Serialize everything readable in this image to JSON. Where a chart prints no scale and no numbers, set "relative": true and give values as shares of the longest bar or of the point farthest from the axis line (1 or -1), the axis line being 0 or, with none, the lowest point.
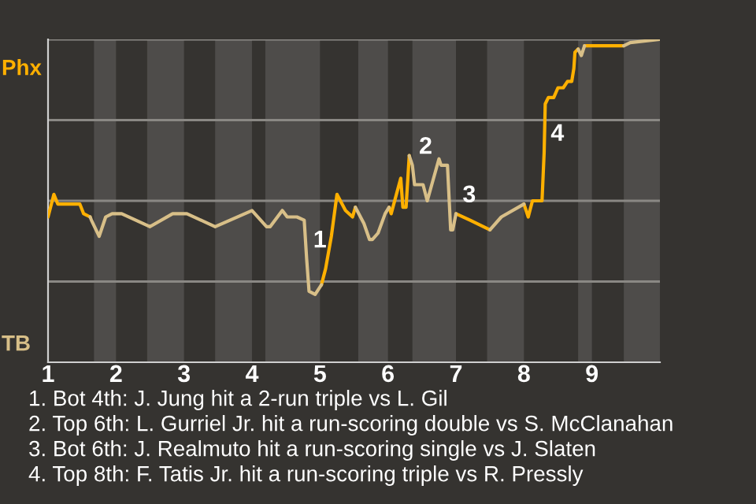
{
  "chart_data": {
    "type": "line",
    "relative": true,
    "grid": "y",
    "xlim": [
      1,
      10
    ],
    "xticks": [
      1,
      2,
      3,
      4,
      5,
      6,
      7,
      8,
      9
    ],
    "series": [
      {
        "name": "Phx",
        "color": "#ffb000",
        "x": [
          1.0,
          1.086,
          1.143,
          1.467,
          1.524,
          1.619,
          null,
          5.021,
          5.083,
          5.167,
          5.25,
          5.375,
          5.479,
          5.521,
          null,
          6.016,
          6.047,
          6.188,
          6.219,
          6.266,
          6.313,
          null,
          7.0,
          7.208,
          7.5,
          null,
          8.0,
          8.063,
          8.125,
          8.266,
          8.297,
          8.313,
          8.359,
          8.438,
          8.5,
          8.578,
          8.641,
          8.703,
          8.734,
          8.75,
          8.797,
          null,
          8.891,
          9.0,
          9.094,
          9.469
        ],
        "values": [
          0.45,
          0.52,
          0.49,
          0.49,
          0.46,
          0.45,
          null,
          0.24,
          0.29,
          0.39,
          0.52,
          0.47,
          0.45,
          0.48,
          null,
          0.48,
          0.46,
          0.57,
          0.48,
          0.48,
          0.64,
          null,
          0.46,
          0.44,
          0.41,
          null,
          0.49,
          0.45,
          0.5,
          0.5,
          0.65,
          0.8,
          0.82,
          0.82,
          0.85,
          0.85,
          0.87,
          0.87,
          0.91,
          0.96,
          0.97,
          null,
          0.98,
          0.98,
          0.98,
          0.98
        ]
      },
      {
        "name": "TB",
        "color": "#d8bf88",
        "x": [
          1.619,
          1.638,
          1.752,
          1.848,
          1.943,
          2.083,
          2.5,
          2.833,
          3.042,
          3.458,
          4.0,
          4.214,
          4.268,
          4.446,
          4.518,
          4.661,
          4.768,
          4.804,
          4.839,
          4.929,
          5.021,
          null,
          5.521,
          5.646,
          5.729,
          5.771,
          5.854,
          5.958,
          6.016,
          null,
          6.313,
          6.359,
          6.391,
          6.516,
          6.578,
          6.75,
          6.781,
          6.875,
          6.922,
          6.953,
          7.0,
          null,
          7.5,
          7.667,
          8.0,
          null,
          8.797,
          8.844,
          8.891,
          null,
          9.469,
          9.563,
          10.0
        ],
        "values": [
          0.45,
          0.44,
          0.39,
          0.45,
          0.46,
          0.46,
          0.42,
          0.46,
          0.46,
          0.42,
          0.47,
          0.42,
          0.42,
          0.47,
          0.45,
          0.45,
          0.44,
          0.32,
          0.22,
          0.21,
          0.24,
          null,
          0.48,
          0.43,
          0.38,
          0.38,
          0.4,
          0.46,
          0.48,
          null,
          0.64,
          0.61,
          0.55,
          0.55,
          0.5,
          0.63,
          0.61,
          0.61,
          0.41,
          0.41,
          0.46,
          null,
          0.41,
          0.45,
          0.49,
          null,
          0.97,
          0.95,
          0.98,
          null,
          0.98,
          0.99,
          1.0
        ]
      }
    ],
    "bands": [
      {
        "axis": "x",
        "from": 1.676,
        "to": 2,
        "color": "#4e4c4a"
      },
      {
        "axis": "x",
        "from": 2.458,
        "to": 3,
        "color": "#4e4c4a"
      },
      {
        "axis": "x",
        "from": 3.458,
        "to": 4,
        "color": "#4e4c4a"
      },
      {
        "axis": "x",
        "from": 4.196,
        "to": 5,
        "color": "#4e4c4a"
      },
      {
        "axis": "x",
        "from": 5.563,
        "to": 6,
        "color": "#4e4c4a"
      },
      {
        "axis": "x",
        "from": 6.359,
        "to": 7,
        "color": "#4e4c4a"
      },
      {
        "axis": "x",
        "from": 7.458,
        "to": 8,
        "color": "#4e4c4a"
      },
      {
        "axis": "x",
        "from": 8.797,
        "to": 9,
        "color": "#4e4c4a"
      },
      {
        "axis": "x",
        "from": 9.469,
        "to": 10,
        "color": "#4e4c4a"
      }
    ],
    "annotations": [
      {
        "text": "1",
        "x": 4.804,
        "y": 0.32
      },
      {
        "text": "2",
        "x": 6.359,
        "y": 0.61
      },
      {
        "text": "3",
        "x": 7.0,
        "y": 0.46
      },
      {
        "text": "4",
        "x": 8.297,
        "y": 0.65
      },
      "1. Bot 4th: J. Jung hit a 2-run triple vs L. Gil",
      "2. Top 6th: L. Gurriel Jr. hit a run-scoring double vs S. McClanahan",
      "3. Bot 6th: J. Realmuto hit a run-scoring single vs J. Slaten",
      "4. Top 8th: F. Tatis Jr. hit a run-scoring triple vs R. Pressly"
    ]
  }
}
